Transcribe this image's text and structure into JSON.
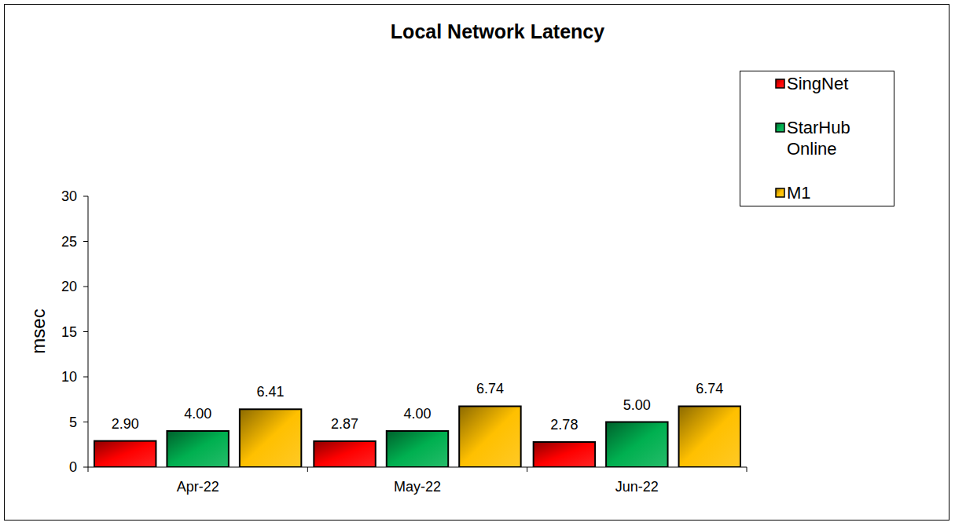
{
  "chart_data": {
    "type": "bar",
    "title": "Local Network Latency",
    "y_label": "msec",
    "categories": [
      "Apr-22",
      "May-22",
      "Jun-22"
    ],
    "series": [
      {
        "name": "SingNet",
        "color": "#ff0000",
        "values": [
          2.9,
          2.87,
          2.78
        ],
        "value_labels": [
          "2.90",
          "2.87",
          "2.78"
        ]
      },
      {
        "name": "StarHub Online",
        "color": "#00b050",
        "values": [
          4,
          4,
          5
        ],
        "value_labels": [
          "4.00",
          "4.00",
          "5.00"
        ]
      },
      {
        "name": "M1",
        "color": "#ffc000",
        "values": [
          6.41,
          6.74,
          6.74
        ],
        "value_labels": [
          "6.41",
          "6.74",
          "6.74"
        ]
      }
    ],
    "ylim": [
      0,
      30
    ],
    "yticks": [
      0,
      5,
      10,
      15,
      20,
      25,
      30
    ],
    "grid": false,
    "legend": "top-right",
    "data_labels": true
  }
}
